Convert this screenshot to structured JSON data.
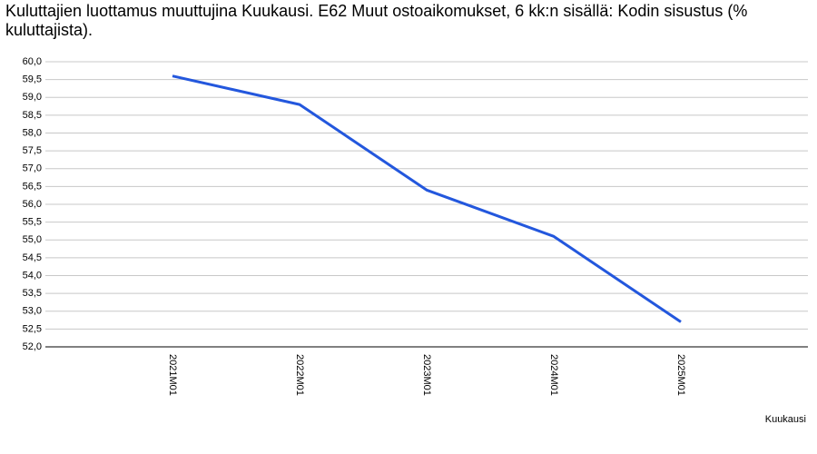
{
  "chart_data": {
    "type": "line",
    "title": "Kuluttajien luottamus muuttujina Kuukausi. E62 Muut ostoaikomukset, 6 kk:n sisällä: Kodin sisustus (% kuluttajista).",
    "x_label": "Kuukausi",
    "categories": [
      "2021M01",
      "2022M01",
      "2023M01",
      "2024M01",
      "2025M01"
    ],
    "series": [
      {
        "name": "Kodin sisustus",
        "color": "#2357dd",
        "values": [
          59.6,
          58.8,
          56.4,
          55.1,
          52.7
        ]
      }
    ],
    "ylim": [
      52,
      60
    ],
    "yticks": [
      {
        "value": 52,
        "label": "52,0"
      },
      {
        "value": 52.5,
        "label": "52,5"
      },
      {
        "value": 53,
        "label": "53,0"
      },
      {
        "value": 53.5,
        "label": "53,5"
      },
      {
        "value": 54,
        "label": "54,0"
      },
      {
        "value": 54.5,
        "label": "54,5"
      },
      {
        "value": 55,
        "label": "55,0"
      },
      {
        "value": 55.5,
        "label": "55,5"
      },
      {
        "value": 56,
        "label": "56,0"
      },
      {
        "value": 56.5,
        "label": "56,5"
      },
      {
        "value": 57,
        "label": "57,0"
      },
      {
        "value": 57.5,
        "label": "57,5"
      },
      {
        "value": 58,
        "label": "58,0"
      },
      {
        "value": 58.5,
        "label": "58,5"
      },
      {
        "value": 59,
        "label": "59,0"
      },
      {
        "value": 59.5,
        "label": "59,5"
      },
      {
        "value": 60,
        "label": "60,0"
      }
    ],
    "grid": true
  }
}
